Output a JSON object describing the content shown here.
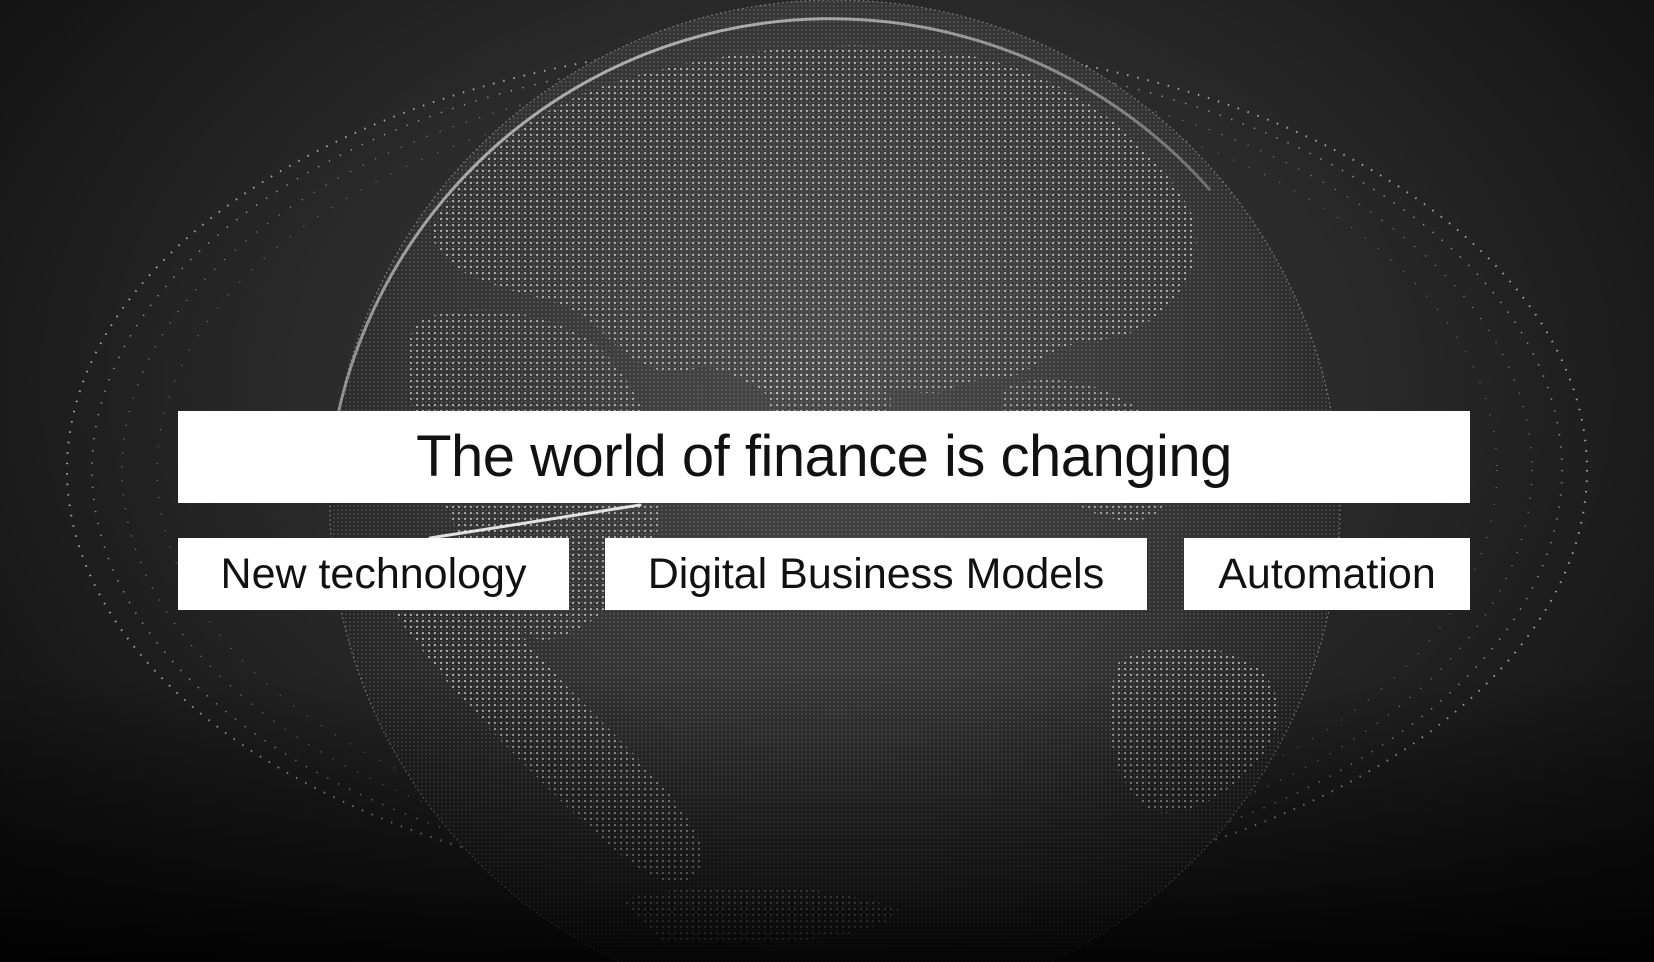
{
  "headline": "The world of finance is changing",
  "tags": [
    {
      "label": "New technology"
    },
    {
      "label": "Digital Business Models"
    },
    {
      "label": "Automation"
    }
  ],
  "colors": {
    "background": "#1c1c1c",
    "globe_land": "#9a9a9a",
    "label_box": "#ffffff",
    "label_text": "#111111"
  }
}
